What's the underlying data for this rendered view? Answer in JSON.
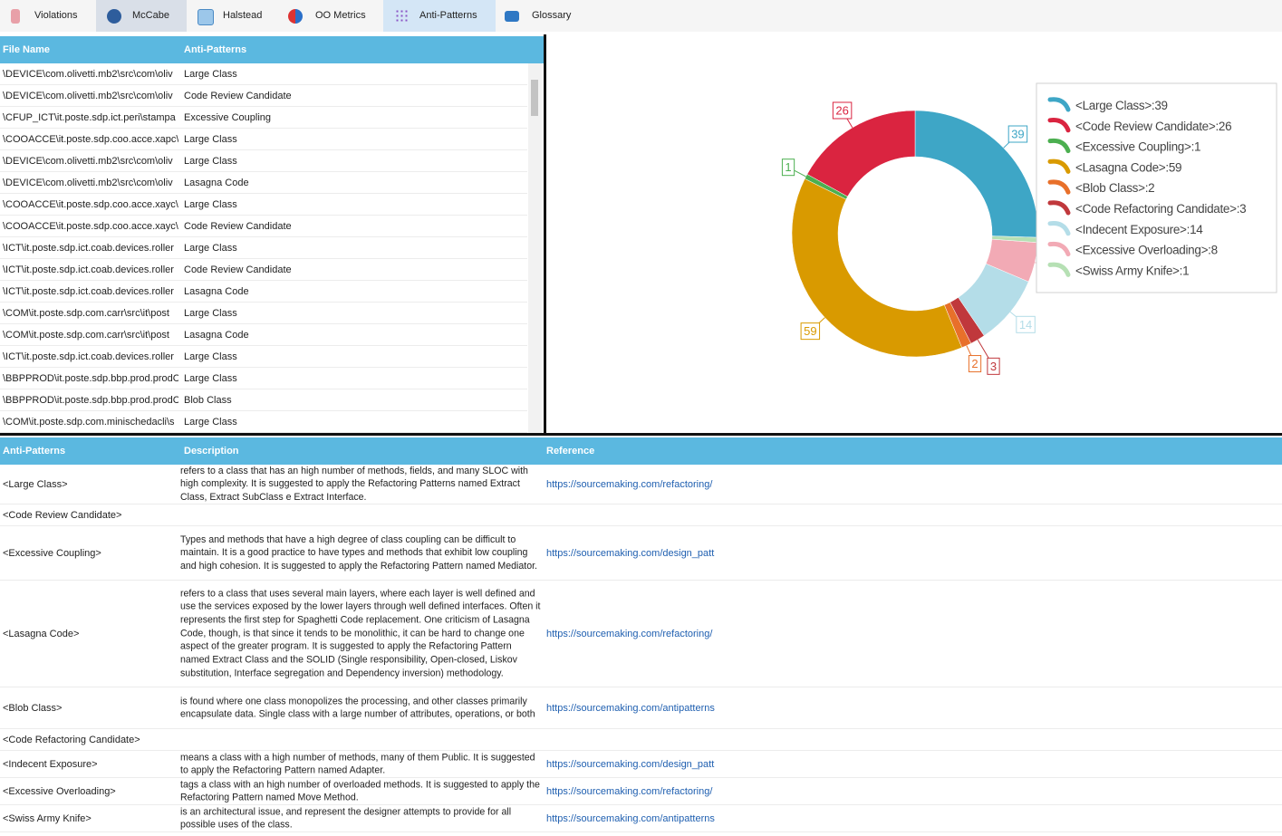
{
  "tabs": [
    "Violations",
    "McCabe",
    "Halstead",
    "OO Metrics",
    "Anti-Patterns",
    "Glossary"
  ],
  "file_table": {
    "columns": [
      "File Name",
      "Anti-Patterns"
    ],
    "rows": [
      [
        "\\DEVICE\\com.olivetti.mb2\\src\\com\\oliv",
        "Large Class"
      ],
      [
        "\\DEVICE\\com.olivetti.mb2\\src\\com\\oliv",
        "Code Review Candidate"
      ],
      [
        "\\CFUP_ICT\\it.poste.sdp.ict.peri\\stampa",
        "Excessive Coupling"
      ],
      [
        "\\COOACCE\\it.poste.sdp.coo.acce.xapc\\s",
        "Large Class"
      ],
      [
        "\\DEVICE\\com.olivetti.mb2\\src\\com\\oliv",
        "Large Class"
      ],
      [
        "\\DEVICE\\com.olivetti.mb2\\src\\com\\oliv",
        "Lasagna Code"
      ],
      [
        "\\COOACCE\\it.poste.sdp.coo.acce.xayc\\s",
        "Large Class"
      ],
      [
        "\\COOACCE\\it.poste.sdp.coo.acce.xayc\\s",
        "Code Review Candidate"
      ],
      [
        "\\ICT\\it.poste.sdp.ict.coab.devices.roller",
        "Large Class"
      ],
      [
        "\\ICT\\it.poste.sdp.ict.coab.devices.roller",
        "Code Review Candidate"
      ],
      [
        "\\ICT\\it.poste.sdp.ict.coab.devices.roller",
        "Lasagna Code"
      ],
      [
        "\\COM\\it.poste.sdp.com.carr\\src\\it\\post",
        "Large Class"
      ],
      [
        "\\COM\\it.poste.sdp.com.carr\\src\\it\\post",
        "Lasagna Code"
      ],
      [
        "\\ICT\\it.poste.sdp.ict.coab.devices.roller",
        "Large Class"
      ],
      [
        "\\BBPPROD\\it.poste.sdp.bbp.prod.prodC",
        "Large Class"
      ],
      [
        "\\BBPPROD\\it.poste.sdp.bbp.prod.prodC",
        "Blob Class"
      ],
      [
        "\\COM\\it.poste.sdp.com.minischedacli\\s",
        "Large Class"
      ]
    ]
  },
  "chart_data": {
    "type": "donut",
    "categories": [
      "<Large Class>:39",
      "<Code Review Candidate>:26",
      "<Excessive Coupling>:1",
      "<Lasagna Code>:59",
      "<Blob Class>:2",
      "<Code Refactoring Candidate>:3",
      "<Indecent Exposure>:14",
      "<Excessive Overloading>:8",
      "<Swiss Army Knife>:1"
    ],
    "values": [
      39,
      26,
      1,
      59,
      2,
      3,
      14,
      8,
      1
    ],
    "colors": [
      "#3ea6c6",
      "#da2440",
      "#4caf50",
      "#d99a00",
      "#e8702a",
      "#c0383c",
      "#b4dde8",
      "#f2aab5",
      "#b6e0b4"
    ],
    "legend": "right"
  },
  "glossary": {
    "columns": [
      "Anti-Patterns",
      "Description",
      "Reference"
    ],
    "rows": [
      {
        "name": "<Large Class>",
        "description": "refers to a class that has an high number of methods, fields, and many SLOC with high complexity. It is suggested to apply the Refactoring Patterns named Extract Class, Extract SubClass e Extract Interface.",
        "reference": "https://sourcemaking.com/refactoring/"
      },
      {
        "name": "<Code Review Candidate>"
      },
      {
        "name": "<Excessive Coupling>",
        "description": "Types and methods that have a high degree of class coupling can be difficult to maintain. It is a good practice to have types and methods that exhibit low coupling and high cohesion. It is suggested to apply the Refactoring Pattern named Mediator.",
        "reference": "https://sourcemaking.com/design_patt"
      },
      {
        "name": "<Lasagna Code>",
        "description": "refers to a class that uses several main layers, where each layer is well defined and use the services exposed by the lower layers through well defined interfaces. Often it represents the first step for Spaghetti Code replacement. One criticism of Lasagna Code, though, is that since it tends to be monolithic, it can be hard to change one aspect of the greater program. It is suggested to apply the Refactoring Pattern named Extract Class and the SOLID (Single responsibility, Open-closed, Liskov substitution, Interface segregation and Dependency inversion) methodology.",
        "reference": "https://sourcemaking.com/refactoring/"
      },
      {
        "name": "<Blob Class>",
        "description": "is found where one class monopolizes the processing, and other classes primarily encapsulate data. Single class with a large number of attributes, operations, or both",
        "reference": "https://sourcemaking.com/antipatterns"
      },
      {
        "name": "<Code Refactoring Candidate>"
      },
      {
        "name": "<Indecent Exposure>",
        "description": "means a class with a high number of methods, many of them Public. It is suggested to apply the Refactoring Pattern named Adapter.",
        "reference": "https://sourcemaking.com/design_patt"
      },
      {
        "name": "<Excessive Overloading>",
        "description": "tags a class with an high number of overloaded methods. It is suggested to apply the Refactoring Pattern named Move Method.",
        "reference": "https://sourcemaking.com/refactoring/"
      },
      {
        "name": "<Swiss Army Knife>",
        "description": "is an architectural issue, and represent the designer attempts to provide for all possible uses of the class.",
        "reference": "https://sourcemaking.com/antipatterns"
      }
    ]
  }
}
